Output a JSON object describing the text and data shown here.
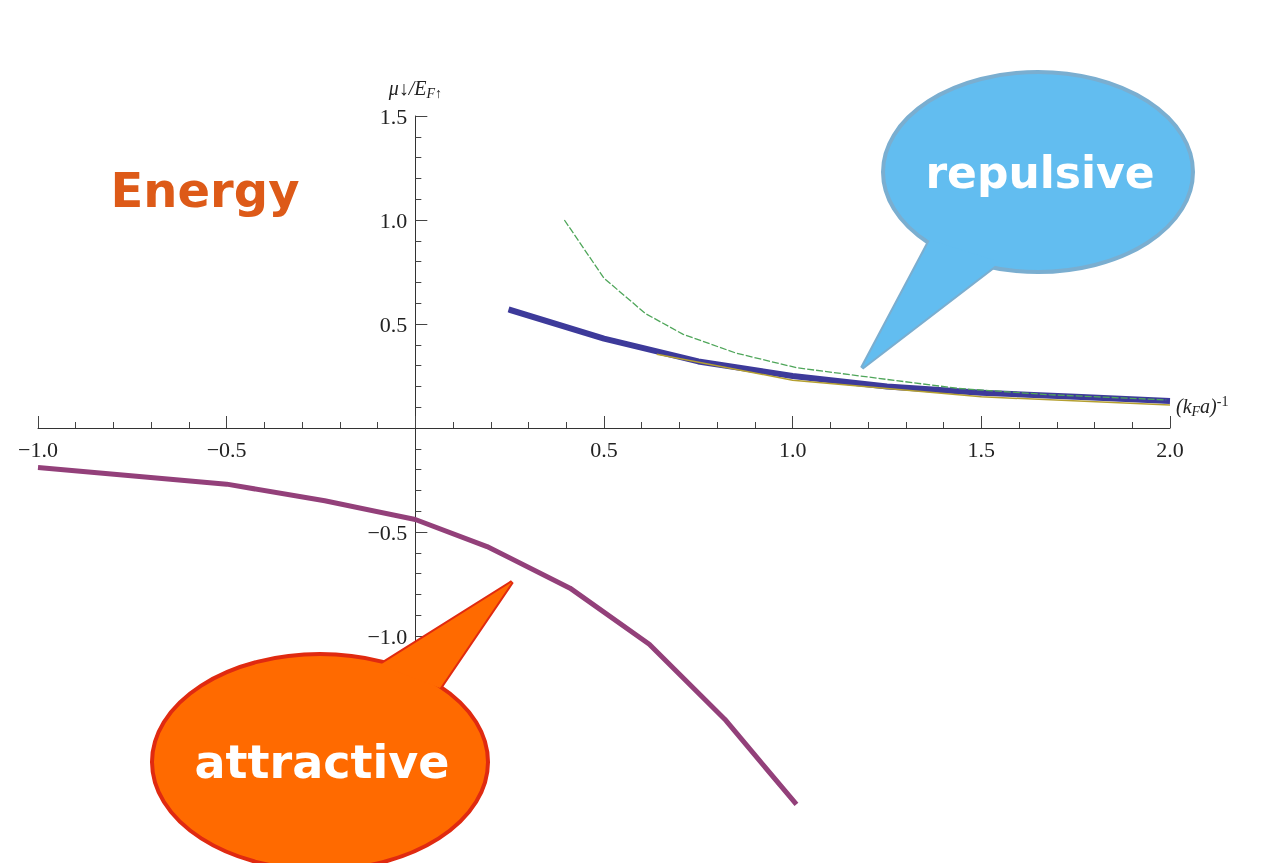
{
  "chart_data": {
    "type": "line",
    "xlabel": "(k$_{F}$a)$^{-1}$",
    "ylabel": "μ↓/E$_{F↑}$",
    "annotations": [
      "Energy",
      "repulsive",
      "attractive"
    ],
    "xlim": [
      -1,
      2
    ],
    "xticks": [
      {
        "value": -1,
        "label": "−1.0"
      },
      {
        "value": -0.5,
        "label": "−0.5"
      },
      0.5,
      {
        "value": 1,
        "label": "1.0"
      },
      1.5,
      {
        "value": 2,
        "label": "2.0"
      }
    ],
    "ylim": [
      -2,
      1.5
    ],
    "yticks": [
      {
        "value": -1,
        "label": "−1.0"
      },
      {
        "value": -0.5,
        "label": "−0.5"
      },
      0.5,
      {
        "value": 1,
        "label": "1.0"
      },
      1.5
    ],
    "grid": false,
    "marker": "none",
    "series": [
      {
        "color": "#93407a",
        "x": [
          -1.0,
          -0.5,
          -0.24,
          0,
          0.19,
          0.41,
          0.62,
          0.82,
          1.01
        ],
        "values": [
          -0.19,
          -0.27,
          -0.35,
          -0.44,
          -0.57,
          -0.77,
          -1.04,
          -1.4,
          -1.81
        ]
      },
      {
        "color": "#4fa65a",
        "line_style": "dashed",
        "x": [
          0.395,
          0.5,
          0.61,
          0.71,
          0.85,
          1.01,
          1.2,
          1.44,
          1.68,
          1.99
        ],
        "values": [
          1.0,
          0.72,
          0.55,
          0.45,
          0.36,
          0.29,
          0.245,
          0.19,
          0.16,
          0.135
        ]
      },
      {
        "color": "#b5a030",
        "x": [
          0.64,
          1.0,
          1.5,
          2.0
        ],
        "values": [
          0.355,
          0.23,
          0.15,
          0.11
        ]
      },
      {
        "color": "#3d3a9a",
        "x": [
          0.247,
          0.5,
          0.75,
          1.0,
          1.25,
          1.5,
          1.75,
          2.0
        ],
        "values": [
          0.57,
          0.43,
          0.32,
          0.25,
          0.2,
          0.17,
          0.15,
          0.13
        ]
      }
    ]
  }
}
